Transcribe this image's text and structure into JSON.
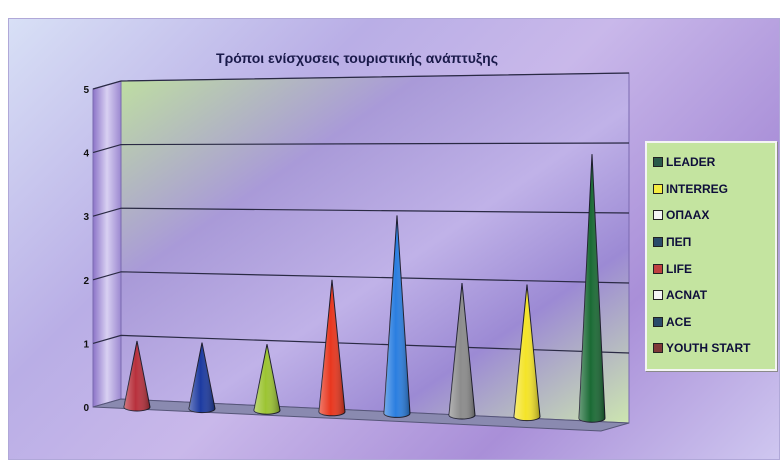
{
  "chart_data": {
    "type": "bar",
    "title": "Τρόποι ενίσχυσεις τουριστικής ανάπτυξης",
    "xlabel": "",
    "ylabel": "",
    "ylim": [
      0,
      5
    ],
    "yticks": [
      "0",
      "1",
      "2",
      "3",
      "4",
      "5"
    ],
    "grid": true,
    "legend_position": "right",
    "categories": [
      "LEADER",
      "INTERREG",
      "ΟΠΑΑΧ",
      "ΠΕΠ",
      "LIFE",
      "ACNAT",
      "ACE",
      "YOUTH START"
    ],
    "values": [
      1,
      1,
      1,
      2,
      3,
      2,
      2,
      4
    ],
    "colors": [
      "#b8303c",
      "#1c3aa0",
      "#9cc432",
      "#e8361e",
      "#2a7ee0",
      "#8c8c8c",
      "#f4e428",
      "#1a6a34"
    ],
    "legend_swatch_colors": [
      "#2a5a4a",
      "#f4ec40",
      "#f4f4f4",
      "#2a4a6a",
      "#c04040",
      "#f4f4f4",
      "#2a4a6a",
      "#803838"
    ],
    "chart_style": "3d-cone",
    "wall_color": "#c4e4a0"
  }
}
